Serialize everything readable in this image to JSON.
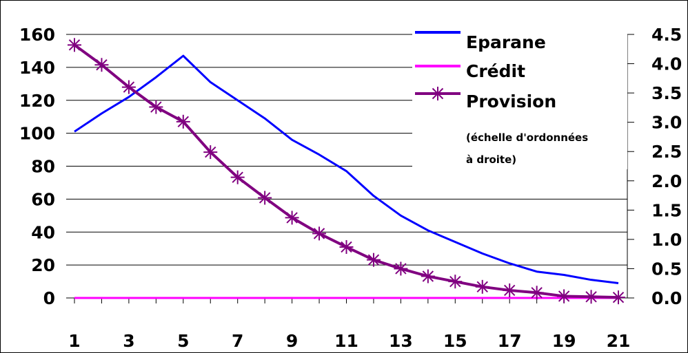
{
  "chart_data": {
    "type": "line",
    "x": [
      1,
      2,
      3,
      4,
      5,
      6,
      7,
      8,
      9,
      10,
      11,
      12,
      13,
      14,
      15,
      16,
      17,
      18,
      19,
      20,
      21
    ],
    "x_tick_labels": [
      "1",
      "3",
      "5",
      "7",
      "9",
      "11",
      "13",
      "15",
      "17",
      "19",
      "21"
    ],
    "y_left_tick_labels": [
      "0",
      "20",
      "40",
      "60",
      "80",
      "100",
      "120",
      "140",
      "160"
    ],
    "y_right_tick_labels": [
      "0.0",
      "0.5",
      "1.0",
      "1.5",
      "2.0",
      "2.5",
      "3.0",
      "3.5",
      "4.0",
      "4.5"
    ],
    "ylim_left": [
      0,
      160
    ],
    "ylim_right": [
      0,
      4.5
    ],
    "grid": "horizontal",
    "legend_position": "top-right",
    "series": [
      {
        "name": "Eparane",
        "axis": "left",
        "color": "#0000ff",
        "values": [
          101,
          112,
          122,
          134,
          147,
          131,
          120,
          109,
          96,
          87,
          77,
          62,
          50,
          41,
          34,
          27,
          21,
          16,
          14,
          11,
          9
        ]
      },
      {
        "name": "Crédit",
        "axis": "left",
        "color": "#ff00ff",
        "values": [
          0,
          0,
          0,
          0,
          0,
          0,
          0,
          0,
          0,
          0,
          0,
          0,
          0,
          0,
          0,
          0,
          0,
          0,
          0,
          0,
          0
        ]
      },
      {
        "name": "Provision",
        "axis": "right",
        "color": "#800080",
        "marker": "asterisk",
        "values": [
          4.32,
          3.98,
          3.6,
          3.26,
          3.01,
          2.49,
          2.06,
          1.71,
          1.37,
          1.1,
          0.87,
          0.65,
          0.5,
          0.37,
          0.28,
          0.19,
          0.13,
          0.09,
          0.03,
          0.02,
          0.01
        ]
      }
    ],
    "legend_note": [
      "(échelle d'ordonnées",
      "à droite)"
    ]
  },
  "colors": {
    "grid": "#000000",
    "background": "#ffffff"
  }
}
